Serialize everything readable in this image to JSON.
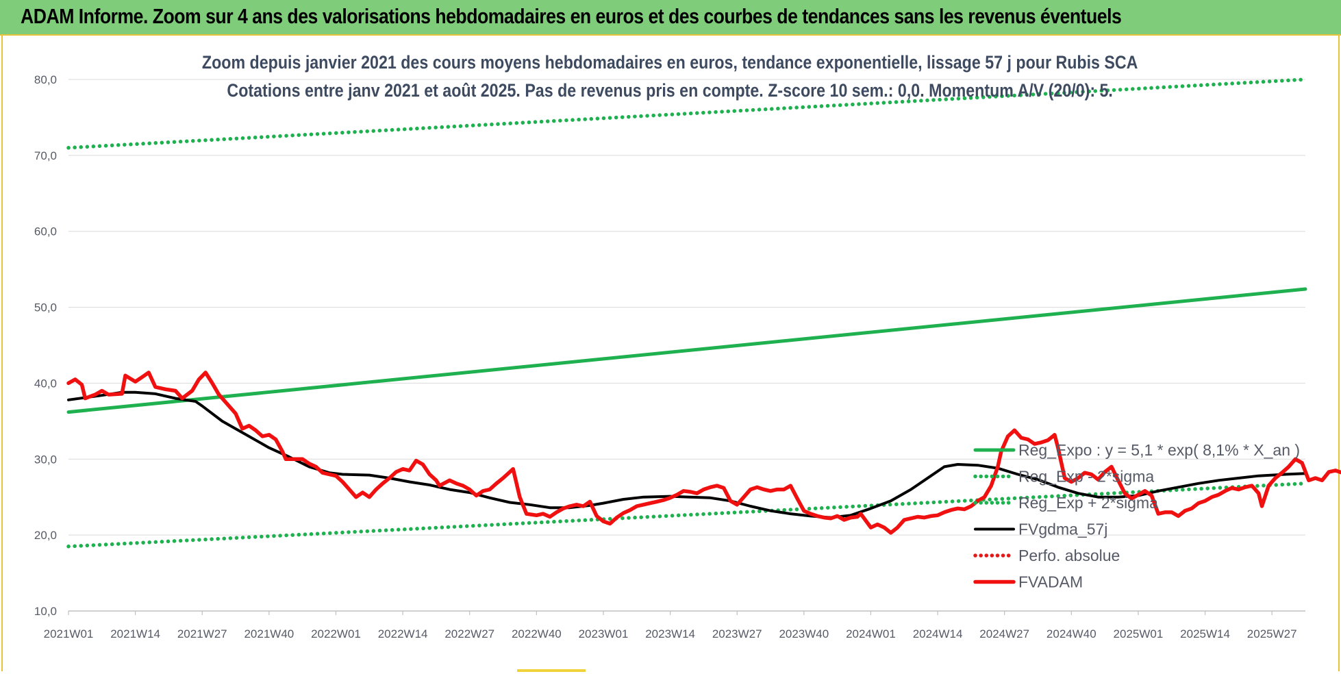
{
  "banner": {
    "title": "ADAM Informe. Zoom sur 4 ans des valorisations hebdomadaires en euros et des courbes de tendances sans les revenus éventuels"
  },
  "chart_data": {
    "type": "line",
    "title": "Zoom depuis janvier 2021 des cours moyens hebdomadaires en euros, tendance exponentielle, lissage 57 j pour Rubis SCA",
    "subtitle": "Cotations entre janv 2021 et août 2025.  Pas de revenus pris en compte. Z-score 10 sem.: 0,0. Momentum A/V (20/0): 5.",
    "ylim": [
      10,
      80
    ],
    "yticks": [
      "10,0",
      "20,0",
      "30,0",
      "40,0",
      "50,0",
      "60,0",
      "70,0",
      "80,0"
    ],
    "x_ticks": [
      "2021W01",
      "2021W14",
      "2021W27",
      "2021W40",
      "2022W01",
      "2022W14",
      "2022W27",
      "2022W40",
      "2023W01",
      "2023W14",
      "2023W27",
      "2023W40",
      "2024W01",
      "2024W14",
      "2024W27",
      "2024W40",
      "2025W01",
      "2025W14",
      "2025W27"
    ],
    "x_end": 18.5,
    "grid": "horizontal",
    "legend_position": "bottom-right",
    "series": [
      {
        "name": "Reg_Expo : y = 5,1 * exp( 8,1% *  X_an )",
        "color": "#1fb050",
        "style": "solid",
        "points": [
          [
            0,
            36.2
          ],
          [
            18.5,
            52.4
          ]
        ]
      },
      {
        "name": "Reg_Exp - 2*sigma",
        "color": "#1fb050",
        "style": "dotted",
        "points": [
          [
            0,
            18.5
          ],
          [
            18.5,
            26.8
          ]
        ]
      },
      {
        "name": "Reg_Exp + 2*sigma",
        "color": "#1fb050",
        "style": "dotted",
        "points": [
          [
            0,
            71.0
          ],
          [
            18.5,
            80.0
          ]
        ]
      },
      {
        "name": "FVgdma_57j",
        "color": "#000000",
        "style": "solid",
        "points": [
          [
            0,
            37.8
          ],
          [
            0.5,
            38.4
          ],
          [
            0.8,
            38.8
          ],
          [
            1.0,
            38.8
          ],
          [
            1.3,
            38.6
          ],
          [
            1.6,
            38.0
          ],
          [
            1.9,
            37.6
          ],
          [
            2.0,
            37.0
          ],
          [
            2.3,
            35.0
          ],
          [
            2.6,
            33.5
          ],
          [
            3.0,
            31.5
          ],
          [
            3.3,
            30.3
          ],
          [
            3.6,
            29.0
          ],
          [
            3.9,
            28.2
          ],
          [
            4.1,
            28.0
          ],
          [
            4.5,
            27.9
          ],
          [
            4.8,
            27.5
          ],
          [
            5.1,
            27.0
          ],
          [
            5.4,
            26.6
          ],
          [
            5.7,
            26.0
          ],
          [
            6.0,
            25.6
          ],
          [
            6.3,
            24.9
          ],
          [
            6.6,
            24.3
          ],
          [
            6.9,
            24.0
          ],
          [
            7.2,
            23.6
          ],
          [
            7.5,
            23.6
          ],
          [
            7.8,
            23.9
          ],
          [
            8.0,
            24.2
          ],
          [
            8.3,
            24.7
          ],
          [
            8.6,
            25.0
          ],
          [
            9.0,
            25.1
          ],
          [
            9.3,
            25.0
          ],
          [
            9.6,
            24.9
          ],
          [
            9.9,
            24.5
          ],
          [
            10.2,
            23.8
          ],
          [
            10.5,
            23.2
          ],
          [
            10.8,
            22.8
          ],
          [
            11.1,
            22.5
          ],
          [
            11.4,
            22.3
          ],
          [
            11.7,
            22.6
          ],
          [
            12.0,
            23.5
          ],
          [
            12.3,
            24.5
          ],
          [
            12.6,
            26.0
          ],
          [
            12.9,
            27.8
          ],
          [
            13.1,
            29.0
          ],
          [
            13.3,
            29.3
          ],
          [
            13.6,
            29.2
          ],
          [
            13.9,
            28.8
          ],
          [
            14.2,
            28.0
          ],
          [
            14.5,
            27.3
          ],
          [
            14.8,
            26.3
          ],
          [
            15.1,
            25.5
          ],
          [
            15.4,
            25.0
          ],
          [
            15.7,
            25.0
          ],
          [
            16.0,
            25.2
          ],
          [
            16.3,
            25.8
          ],
          [
            16.6,
            26.3
          ],
          [
            16.9,
            26.8
          ],
          [
            17.2,
            27.2
          ],
          [
            17.5,
            27.5
          ],
          [
            17.8,
            27.8
          ],
          [
            18.2,
            28.0
          ],
          [
            18.5,
            28.1
          ]
        ]
      },
      {
        "name": "Perfo. absolue",
        "color": "#e01b1b",
        "style": "dotted",
        "points": []
      },
      {
        "name": "FVADAM",
        "color": "#f01010",
        "style": "solid",
        "points": [
          [
            0,
            40.0
          ],
          [
            0.1,
            40.5
          ],
          [
            0.2,
            39.8
          ],
          [
            0.25,
            38.0
          ],
          [
            0.4,
            38.5
          ],
          [
            0.5,
            39.0
          ],
          [
            0.6,
            38.5
          ],
          [
            0.8,
            38.6
          ],
          [
            0.85,
            41.0
          ],
          [
            1.0,
            40.2
          ],
          [
            1.1,
            40.8
          ],
          [
            1.2,
            41.4
          ],
          [
            1.3,
            39.5
          ],
          [
            1.45,
            39.2
          ],
          [
            1.6,
            39.0
          ],
          [
            1.7,
            38.0
          ],
          [
            1.85,
            39.0
          ],
          [
            1.95,
            40.5
          ],
          [
            2.05,
            41.4
          ],
          [
            2.15,
            40.0
          ],
          [
            2.25,
            38.5
          ],
          [
            2.4,
            37.0
          ],
          [
            2.5,
            36.0
          ],
          [
            2.6,
            34.0
          ],
          [
            2.7,
            34.4
          ],
          [
            2.8,
            33.8
          ],
          [
            2.9,
            33.0
          ],
          [
            3.0,
            33.2
          ],
          [
            3.1,
            32.6
          ],
          [
            3.2,
            31.0
          ],
          [
            3.25,
            30.0
          ],
          [
            3.4,
            30.0
          ],
          [
            3.5,
            30.0
          ],
          [
            3.6,
            29.4
          ],
          [
            3.7,
            29.0
          ],
          [
            3.8,
            28.2
          ],
          [
            3.9,
            28.0
          ],
          [
            4.0,
            27.8
          ],
          [
            4.1,
            27.0
          ],
          [
            4.2,
            26.0
          ],
          [
            4.3,
            25.0
          ],
          [
            4.4,
            25.6
          ],
          [
            4.5,
            25.0
          ],
          [
            4.6,
            26.0
          ],
          [
            4.7,
            26.8
          ],
          [
            4.8,
            27.5
          ],
          [
            4.9,
            28.3
          ],
          [
            5.0,
            28.7
          ],
          [
            5.1,
            28.5
          ],
          [
            5.2,
            29.8
          ],
          [
            5.3,
            29.3
          ],
          [
            5.4,
            28.0
          ],
          [
            5.5,
            27.2
          ],
          [
            5.55,
            26.5
          ],
          [
            5.7,
            27.2
          ],
          [
            5.8,
            26.8
          ],
          [
            5.9,
            26.5
          ],
          [
            6.0,
            26.0
          ],
          [
            6.1,
            25.2
          ],
          [
            6.2,
            25.8
          ],
          [
            6.3,
            26.0
          ],
          [
            6.4,
            26.8
          ],
          [
            6.5,
            27.5
          ],
          [
            6.6,
            28.3
          ],
          [
            6.65,
            28.7
          ],
          [
            6.75,
            25.0
          ],
          [
            6.85,
            22.8
          ],
          [
            7.0,
            22.6
          ],
          [
            7.1,
            22.8
          ],
          [
            7.2,
            22.4
          ],
          [
            7.3,
            23.0
          ],
          [
            7.4,
            23.5
          ],
          [
            7.5,
            23.8
          ],
          [
            7.6,
            24.0
          ],
          [
            7.7,
            23.8
          ],
          [
            7.8,
            24.4
          ],
          [
            7.9,
            22.5
          ],
          [
            8.0,
            21.8
          ],
          [
            8.1,
            21.5
          ],
          [
            8.2,
            22.3
          ],
          [
            8.3,
            22.9
          ],
          [
            8.4,
            23.3
          ],
          [
            8.5,
            23.8
          ],
          [
            8.6,
            24.0
          ],
          [
            8.7,
            24.2
          ],
          [
            8.8,
            24.4
          ],
          [
            8.9,
            24.6
          ],
          [
            9.0,
            24.9
          ],
          [
            9.1,
            25.3
          ],
          [
            9.2,
            25.8
          ],
          [
            9.3,
            25.7
          ],
          [
            9.4,
            25.5
          ],
          [
            9.5,
            26.0
          ],
          [
            9.6,
            26.3
          ],
          [
            9.7,
            26.5
          ],
          [
            9.8,
            26.2
          ],
          [
            9.9,
            24.5
          ],
          [
            10.0,
            24.0
          ],
          [
            10.1,
            25.0
          ],
          [
            10.2,
            26.0
          ],
          [
            10.3,
            26.3
          ],
          [
            10.4,
            26.0
          ],
          [
            10.5,
            25.8
          ],
          [
            10.6,
            26.0
          ],
          [
            10.7,
            26.0
          ],
          [
            10.8,
            26.5
          ],
          [
            10.9,
            24.8
          ],
          [
            11.0,
            23.2
          ],
          [
            11.1,
            22.8
          ],
          [
            11.2,
            22.5
          ],
          [
            11.3,
            22.3
          ],
          [
            11.4,
            22.2
          ],
          [
            11.5,
            22.5
          ],
          [
            11.6,
            22.0
          ],
          [
            11.7,
            22.3
          ],
          [
            11.8,
            22.4
          ],
          [
            11.85,
            22.8
          ],
          [
            11.9,
            22.2
          ],
          [
            12.0,
            21.0
          ],
          [
            12.1,
            21.4
          ],
          [
            12.2,
            21.0
          ],
          [
            12.3,
            20.3
          ],
          [
            12.4,
            21.0
          ],
          [
            12.5,
            22.0
          ],
          [
            12.6,
            22.2
          ],
          [
            12.7,
            22.4
          ],
          [
            12.8,
            22.3
          ],
          [
            12.9,
            22.5
          ],
          [
            13.0,
            22.6
          ],
          [
            13.1,
            23.0
          ],
          [
            13.2,
            23.3
          ],
          [
            13.3,
            23.5
          ],
          [
            13.4,
            23.4
          ],
          [
            13.5,
            23.8
          ],
          [
            13.6,
            24.5
          ],
          [
            13.7,
            25.0
          ],
          [
            13.8,
            26.5
          ],
          [
            13.9,
            29.0
          ],
          [
            13.95,
            31.0
          ],
          [
            14.05,
            33.0
          ],
          [
            14.15,
            33.8
          ],
          [
            14.25,
            32.8
          ],
          [
            14.35,
            32.6
          ],
          [
            14.45,
            32.0
          ],
          [
            14.55,
            32.2
          ],
          [
            14.65,
            32.5
          ],
          [
            14.75,
            33.2
          ],
          [
            14.8,
            31.5
          ],
          [
            14.9,
            27.5
          ],
          [
            15.0,
            27.0
          ],
          [
            15.1,
            27.5
          ],
          [
            15.2,
            28.2
          ],
          [
            15.3,
            28.0
          ],
          [
            15.4,
            27.3
          ],
          [
            15.5,
            28.3
          ],
          [
            15.6,
            29.0
          ],
          [
            15.7,
            27.2
          ],
          [
            15.8,
            25.5
          ],
          [
            15.9,
            24.8
          ],
          [
            16.0,
            25.3
          ],
          [
            16.1,
            25.8
          ],
          [
            16.2,
            25.2
          ],
          [
            16.3,
            22.8
          ],
          [
            16.4,
            23.0
          ],
          [
            16.5,
            23.0
          ],
          [
            16.6,
            22.5
          ],
          [
            16.7,
            23.2
          ],
          [
            16.8,
            23.5
          ],
          [
            16.9,
            24.2
          ],
          [
            17.0,
            24.5
          ],
          [
            17.1,
            25.0
          ],
          [
            17.2,
            25.3
          ],
          [
            17.3,
            25.8
          ],
          [
            17.4,
            26.2
          ],
          [
            17.5,
            26.0
          ],
          [
            17.6,
            26.3
          ],
          [
            17.7,
            26.5
          ],
          [
            17.8,
            25.5
          ],
          [
            17.85,
            23.8
          ],
          [
            17.95,
            26.5
          ],
          [
            18.05,
            27.5
          ],
          [
            18.15,
            28.2
          ],
          [
            18.25,
            29.0
          ],
          [
            18.35,
            30.0
          ],
          [
            18.45,
            29.5
          ],
          [
            18.55,
            27.2
          ],
          [
            18.65,
            27.5
          ],
          [
            18.75,
            27.2
          ],
          [
            18.85,
            28.3
          ],
          [
            18.95,
            28.5
          ],
          [
            19.05,
            28.2
          ]
        ]
      }
    ]
  }
}
